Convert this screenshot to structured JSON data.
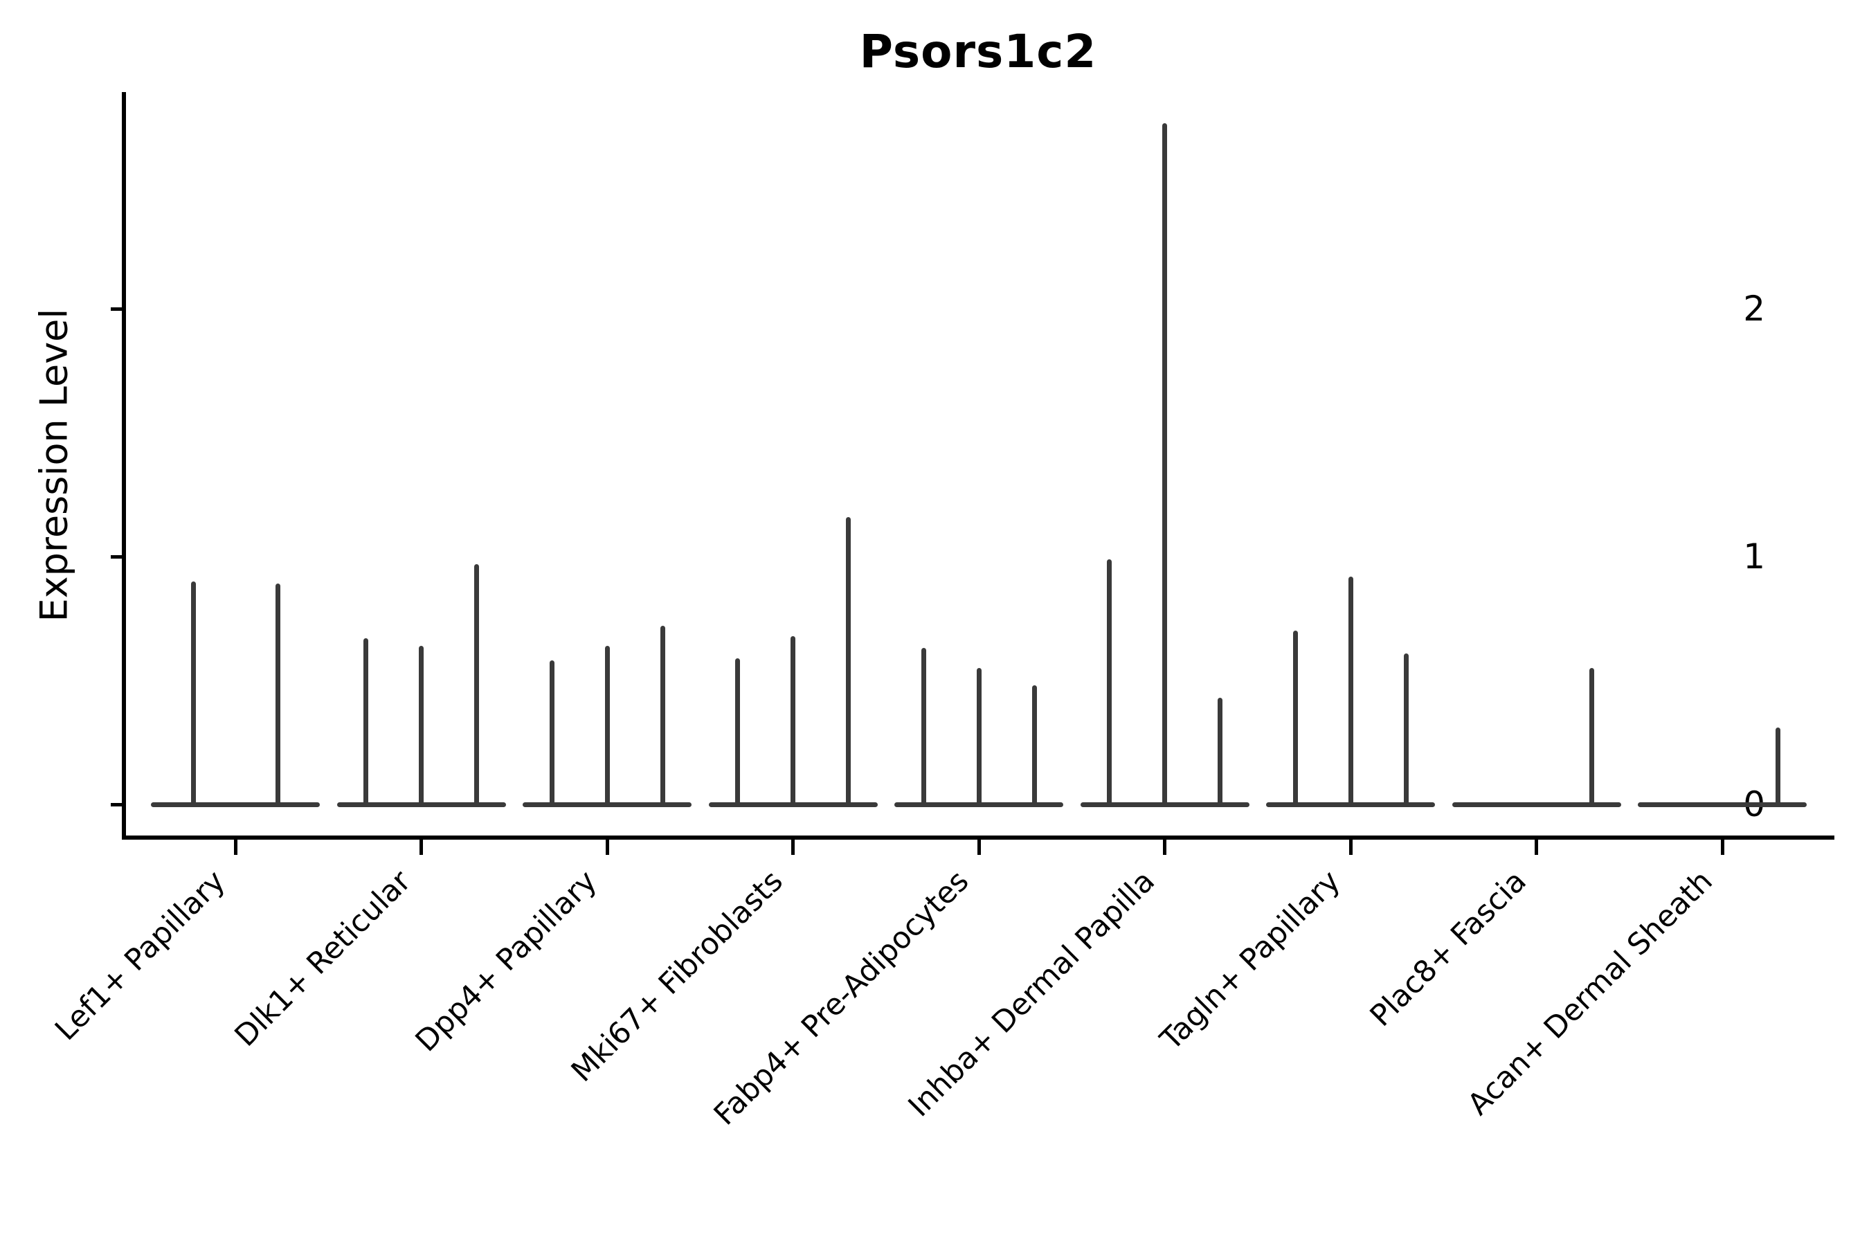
{
  "title": "Psors1c2",
  "y_axis": {
    "label": "Expression Level",
    "tick_labels": [
      "0",
      "1",
      "2"
    ]
  },
  "x_axis": {
    "categories": [
      "Lef1+ Papillary",
      "Dlk1+ Reticular",
      "Dpp4+ Papillary",
      "Mki67+ Fibroblasts",
      "Fabp4+ Pre-Adipocytes",
      "Inhba+ Dermal Papilla",
      "Tagln+ Papillary",
      "Plac8+ Fascia",
      "Acan+ Dermal Sheath"
    ]
  },
  "colors": {
    "mark": "#3a3a3a",
    "axis": "#000000",
    "text": "#000000",
    "background": "#ffffff"
  },
  "chart_data": {
    "type": "violin",
    "title": "Psors1c2",
    "xlabel": "",
    "ylabel": "Expression Level",
    "ylim": [
      0,
      2.85
    ],
    "yticks": [
      0,
      1,
      2
    ],
    "grid": false,
    "legend": null,
    "style_note": "Seurat-style violin plot: each category has a flat density baseline at expression 0 with thin vertical density spikes rising to the maximum expression of each dodged sub-violin",
    "categories": [
      "Lef1+ Papillary",
      "Dlk1+ Reticular",
      "Dpp4+ Papillary",
      "Mki67+ Fibroblasts",
      "Fabp4+ Pre-Adipocytes",
      "Inhba+ Dermal Papilla",
      "Tagln+ Papillary",
      "Plac8+ Fascia",
      "Acan+ Dermal Sheath"
    ],
    "groups": [
      {
        "category": "Lef1+ Papillary",
        "spikes": [
          {
            "dx": -61,
            "value": 0.9
          },
          {
            "dx": 61,
            "value": 0.89
          }
        ]
      },
      {
        "category": "Dlk1+ Reticular",
        "spikes": [
          {
            "dx": -80,
            "value": 0.67
          },
          {
            "dx": 0,
            "value": 0.64
          },
          {
            "dx": 80,
            "value": 0.97
          }
        ]
      },
      {
        "category": "Dpp4+ Papillary",
        "spikes": [
          {
            "dx": -80,
            "value": 0.58
          },
          {
            "dx": 0,
            "value": 0.64
          },
          {
            "dx": 80,
            "value": 0.72
          }
        ]
      },
      {
        "category": "Mki67+ Fibroblasts",
        "spikes": [
          {
            "dx": -80,
            "value": 0.59
          },
          {
            "dx": 0,
            "value": 0.68
          },
          {
            "dx": 80,
            "value": 1.16
          }
        ]
      },
      {
        "category": "Fabp4+ Pre-Adipocytes",
        "spikes": [
          {
            "dx": -80,
            "value": 0.63
          },
          {
            "dx": 0,
            "value": 0.55
          },
          {
            "dx": 80,
            "value": 0.48
          }
        ]
      },
      {
        "category": "Inhba+ Dermal Papilla",
        "spikes": [
          {
            "dx": -80,
            "value": 0.99
          },
          {
            "dx": 0,
            "value": 2.75
          },
          {
            "dx": 80,
            "value": 0.43
          }
        ]
      },
      {
        "category": "Tagln+ Papillary",
        "spikes": [
          {
            "dx": -80,
            "value": 0.7
          },
          {
            "dx": 0,
            "value": 0.92
          },
          {
            "dx": 80,
            "value": 0.61
          }
        ]
      },
      {
        "category": "Plac8+ Fascia",
        "spikes": [
          {
            "dx": 80,
            "value": 0.55
          }
        ]
      },
      {
        "category": "Acan+ Dermal Sheath",
        "spikes": [
          {
            "dx": 80,
            "value": 0.31
          }
        ]
      }
    ]
  }
}
